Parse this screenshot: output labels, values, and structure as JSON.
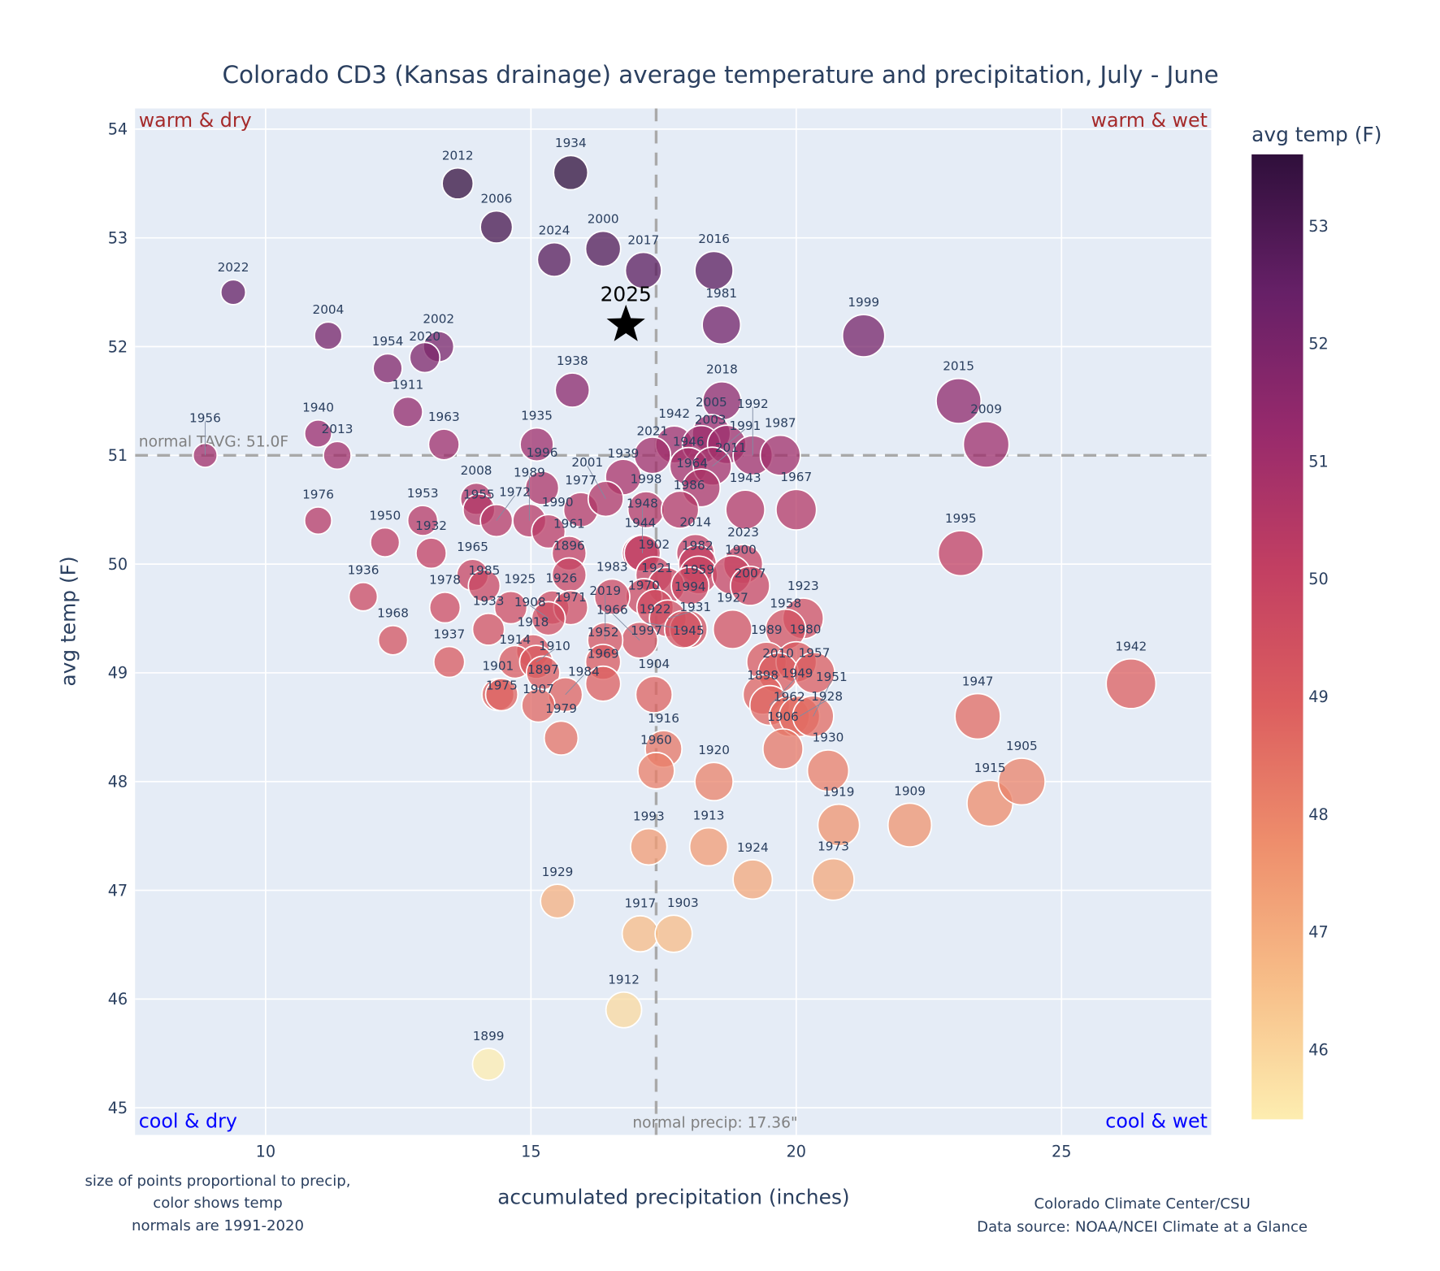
{
  "chart_data": {
    "type": "scatter",
    "title": "Colorado CD3 (Kansas drainage) average temperature and precipitation, July - June",
    "xlabel": "accumulated precipitation (inches)",
    "ylabel": "avg temp (F)",
    "xlim": [
      7.54,
      27.82
    ],
    "ylim": [
      44.75,
      54.19
    ],
    "xticks": [
      "10",
      "15",
      "20",
      "25"
    ],
    "yticks": [
      "45",
      "46",
      "47",
      "48",
      "49",
      "50",
      "51",
      "52",
      "53",
      "54"
    ],
    "grid": true,
    "colorbar": {
      "title": "avg temp (F)",
      "range": [
        45.4,
        53.6
      ],
      "ticks": [
        "46",
        "47",
        "48",
        "49",
        "50",
        "51",
        "52",
        "53"
      ],
      "colors": [
        "#fdedb0",
        "#f7bd88",
        "#ee8e6c",
        "#dc5e5f",
        "#c23f62",
        "#972a6c",
        "#662067",
        "#2f0f3b"
      ]
    },
    "normals": {
      "precip": 17.36,
      "temp": 51.0,
      "precip_label": "normal precip: 17.36\"",
      "temp_label": "normal TAVG: 51.0F"
    },
    "quadrants": {
      "top_left": "warm & dry",
      "top_right": "warm & wet",
      "bottom_left": "cool & dry",
      "bottom_right": "cool & wet"
    },
    "highlight": {
      "label": "2025",
      "x": 16.79,
      "y": 52.2
    },
    "points": [
      {
        "year": "2022",
        "x": 9.39,
        "y": 52.5
      },
      {
        "year": "2012",
        "x": 13.62,
        "y": 53.5
      },
      {
        "year": "1934",
        "x": 15.75,
        "y": 53.6
      },
      {
        "year": "2006",
        "x": 14.35,
        "y": 53.1
      },
      {
        "year": "2024",
        "x": 15.44,
        "y": 52.8
      },
      {
        "year": "2000",
        "x": 16.36,
        "y": 52.9
      },
      {
        "year": "2017",
        "x": 17.12,
        "y": 52.7
      },
      {
        "year": "2016",
        "x": 18.45,
        "y": 52.7
      },
      {
        "year": "1981",
        "x": 18.59,
        "y": 52.2
      },
      {
        "year": "1999",
        "x": 21.27,
        "y": 52.1
      },
      {
        "year": "2004",
        "x": 11.18,
        "y": 52.1
      },
      {
        "year": "2002",
        "x": 13.26,
        "y": 52.0
      },
      {
        "year": "2020",
        "x": 13.0,
        "y": 51.9
      },
      {
        "year": "1954",
        "x": 12.3,
        "y": 51.8
      },
      {
        "year": "1911",
        "x": 12.68,
        "y": 51.4
      },
      {
        "year": "1938",
        "x": 15.78,
        "y": 51.6
      },
      {
        "year": "2015",
        "x": 23.06,
        "y": 51.5
      },
      {
        "year": "2009",
        "x": 23.58,
        "y": 51.1
      },
      {
        "year": "1940",
        "x": 10.99,
        "y": 51.2
      },
      {
        "year": "2013",
        "x": 11.35,
        "y": 51.0
      },
      {
        "year": "1956",
        "x": 8.86,
        "y": 51.0
      },
      {
        "year": "1963",
        "x": 13.36,
        "y": 51.1
      },
      {
        "year": "1935",
        "x": 15.11,
        "y": 51.1
      },
      {
        "year": "2018",
        "x": 18.6,
        "y": 51.5
      },
      {
        "year": "2005",
        "x": 18.4,
        "y": 51.2
      },
      {
        "year": "1942",
        "x": 17.7,
        "y": 51.1
      },
      {
        "year": "2003",
        "x": 18.21,
        "y": 51.1
      },
      {
        "year": "1991",
        "x": 18.69,
        "y": 51.1
      },
      {
        "year": "2021",
        "x": 17.29,
        "y": 51.0
      },
      {
        "year": "1946",
        "x": 17.97,
        "y": 50.9
      },
      {
        "year": "2011",
        "x": 18.42,
        "y": 50.9
      },
      {
        "year": "1992",
        "x": 19.18,
        "y": 51.0
      },
      {
        "year": "1987",
        "x": 19.7,
        "y": 51.0
      },
      {
        "year": "1964",
        "x": 18.21,
        "y": 50.7
      },
      {
        "year": "1939",
        "x": 16.74,
        "y": 50.8
      },
      {
        "year": "1998",
        "x": 17.17,
        "y": 50.5
      },
      {
        "year": "1986",
        "x": 17.81,
        "y": 50.5
      },
      {
        "year": "1943",
        "x": 19.04,
        "y": 50.5
      },
      {
        "year": "1967",
        "x": 20.0,
        "y": 50.5
      },
      {
        "year": "1995",
        "x": 23.1,
        "y": 50.1
      },
      {
        "year": "1976",
        "x": 10.99,
        "y": 50.4
      },
      {
        "year": "1950",
        "x": 12.25,
        "y": 50.2
      },
      {
        "year": "1953",
        "x": 12.96,
        "y": 50.4
      },
      {
        "year": "1932",
        "x": 13.12,
        "y": 50.1
      },
      {
        "year": "2008",
        "x": 13.97,
        "y": 50.6
      },
      {
        "year": "1955",
        "x": 14.02,
        "y": 50.5
      },
      {
        "year": "1972",
        "x": 14.35,
        "y": 50.4
      },
      {
        "year": "1989",
        "x": 14.97,
        "y": 50.4
      },
      {
        "year": "1996",
        "x": 15.21,
        "y": 50.7
      },
      {
        "year": "1990",
        "x": 15.33,
        "y": 50.3
      },
      {
        "year": "1977",
        "x": 15.94,
        "y": 50.5
      },
      {
        "year": "2001",
        "x": 16.41,
        "y": 50.6
      },
      {
        "year": "1961",
        "x": 15.72,
        "y": 50.1
      },
      {
        "year": "1896",
        "x": 15.72,
        "y": 49.9
      },
      {
        "year": "1944",
        "x": 17.06,
        "y": 50.1
      },
      {
        "year": "1948",
        "x": 17.1,
        "y": 50.1
      },
      {
        "year": "2014",
        "x": 18.1,
        "y": 50.1
      },
      {
        "year": "1982",
        "x": 18.14,
        "y": 50.0
      },
      {
        "year": "2023",
        "x": 19.0,
        "y": 50.0
      },
      {
        "year": "1902",
        "x": 17.32,
        "y": 49.9
      },
      {
        "year": "1959",
        "x": 18.16,
        "y": 49.9
      },
      {
        "year": "1900",
        "x": 18.78,
        "y": 49.9
      },
      {
        "year": "1921",
        "x": 17.55,
        "y": 49.8
      },
      {
        "year": "1994",
        "x": 18.0,
        "y": 49.8
      },
      {
        "year": "2007",
        "x": 19.13,
        "y": 49.8
      },
      {
        "year": "1970",
        "x": 17.13,
        "y": 49.7
      },
      {
        "year": "1983",
        "x": 16.53,
        "y": 49.7
      },
      {
        "year": "1922",
        "x": 17.34,
        "y": 49.6
      },
      {
        "year": "1931",
        "x": 17.58,
        "y": 49.5
      },
      {
        "year": "1945",
        "x": 17.97,
        "y": 49.4
      },
      {
        "year": "1997",
        "x": 17.87,
        "y": 49.4
      },
      {
        "year": "1927",
        "x": 18.8,
        "y": 49.4
      },
      {
        "year": "1923",
        "x": 20.13,
        "y": 49.5
      },
      {
        "year": "1958",
        "x": 19.8,
        "y": 49.4
      },
      {
        "year": "1966",
        "x": 17.05,
        "y": 49.3
      },
      {
        "year": "2019",
        "x": 16.4,
        "y": 49.3
      },
      {
        "year": "1952",
        "x": 16.36,
        "y": 49.1
      },
      {
        "year": "1969",
        "x": 16.36,
        "y": 48.9
      },
      {
        "year": "1904",
        "x": 17.32,
        "y": 48.8
      },
      {
        "year": "1936",
        "x": 11.84,
        "y": 49.7
      },
      {
        "year": "1968",
        "x": 12.4,
        "y": 49.3
      },
      {
        "year": "1965",
        "x": 13.9,
        "y": 49.9
      },
      {
        "year": "1985",
        "x": 14.12,
        "y": 49.8
      },
      {
        "year": "1978",
        "x": 13.38,
        "y": 49.6
      },
      {
        "year": "1925",
        "x": 14.62,
        "y": 49.6
      },
      {
        "year": "1926",
        "x": 15.4,
        "y": 49.6
      },
      {
        "year": "1971",
        "x": 15.75,
        "y": 49.6
      },
      {
        "year": "1908",
        "x": 15.33,
        "y": 49.5
      },
      {
        "year": "1933",
        "x": 14.2,
        "y": 49.4
      },
      {
        "year": "1918",
        "x": 15.04,
        "y": 49.2
      },
      {
        "year": "1914",
        "x": 14.7,
        "y": 49.1
      },
      {
        "year": "1910",
        "x": 15.1,
        "y": 49.1
      },
      {
        "year": "1937",
        "x": 13.46,
        "y": 49.1
      },
      {
        "year": "1901",
        "x": 14.38,
        "y": 48.8
      },
      {
        "year": "1975",
        "x": 14.45,
        "y": 48.8
      },
      {
        "year": "1897",
        "x": 15.23,
        "y": 49.0
      },
      {
        "year": "1984",
        "x": 15.65,
        "y": 48.8
      },
      {
        "year": "1907",
        "x": 15.14,
        "y": 48.7
      },
      {
        "year": "1979",
        "x": 15.57,
        "y": 48.4
      },
      {
        "year": "1989b",
        "x": 19.44,
        "y": 49.1
      },
      {
        "year": "1980",
        "x": 20.0,
        "y": 49.1
      },
      {
        "year": "2010",
        "x": 19.66,
        "y": 49.0
      },
      {
        "year": "1957",
        "x": 20.34,
        "y": 49.0
      },
      {
        "year": "1898",
        "x": 19.37,
        "y": 48.8
      },
      {
        "year": "1949",
        "x": 19.5,
        "y": 48.7
      },
      {
        "year": "1962",
        "x": 19.87,
        "y": 48.6
      },
      {
        "year": "1928",
        "x": 20.06,
        "y": 48.6
      },
      {
        "year": "1951",
        "x": 20.32,
        "y": 48.6
      },
      {
        "year": "1906",
        "x": 19.75,
        "y": 48.3
      },
      {
        "year": "1930",
        "x": 20.6,
        "y": 48.1
      },
      {
        "year": "1916",
        "x": 17.5,
        "y": 48.3
      },
      {
        "year": "1960",
        "x": 17.36,
        "y": 48.1
      },
      {
        "year": "1920",
        "x": 18.45,
        "y": 48.0
      },
      {
        "year": "1993",
        "x": 17.22,
        "y": 47.4
      },
      {
        "year": "1913",
        "x": 18.35,
        "y": 47.4
      },
      {
        "year": "1924",
        "x": 19.18,
        "y": 47.1
      },
      {
        "year": "1973",
        "x": 20.7,
        "y": 47.1
      },
      {
        "year": "1919",
        "x": 20.8,
        "y": 47.6
      },
      {
        "year": "1909",
        "x": 22.14,
        "y": 47.6
      },
      {
        "year": "1915",
        "x": 23.65,
        "y": 47.8
      },
      {
        "year": "1905",
        "x": 24.25,
        "y": 48.0
      },
      {
        "year": "1947",
        "x": 23.42,
        "y": 48.6
      },
      {
        "year": "1942b",
        "x": 26.31,
        "y": 48.9
      },
      {
        "year": "1929",
        "x": 15.5,
        "y": 46.9
      },
      {
        "year": "1917",
        "x": 17.06,
        "y": 46.6
      },
      {
        "year": "1903",
        "x": 17.69,
        "y": 46.6
      },
      {
        "year": "1912",
        "x": 16.75,
        "y": 45.9
      },
      {
        "year": "1899",
        "x": 14.2,
        "y": 45.4
      }
    ],
    "notes": {
      "left_1": "size of points proportional to precip,",
      "left_2": "color shows temp",
      "left_3": "normals are 1991-2020",
      "right_1": "Colorado Climate Center/CSU",
      "right_2": "Data source: NOAA/NCEI Climate at a Glance"
    }
  }
}
